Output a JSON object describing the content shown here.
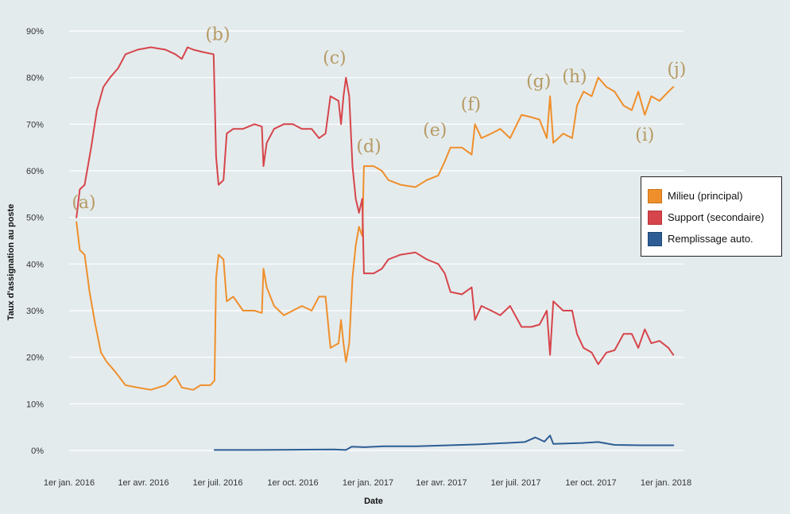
{
  "chart_data": {
    "type": "line",
    "xlabel": "Date",
    "ylabel": "Taux d'assignation au poste",
    "ylim": [
      0,
      90
    ],
    "y_ticks": [
      0,
      10,
      20,
      30,
      40,
      50,
      60,
      70,
      80,
      90
    ],
    "y_tick_labels": [
      "0%",
      "10%",
      "20%",
      "30%",
      "40%",
      "50%",
      "60%",
      "70%",
      "80%",
      "90%"
    ],
    "x_range": [
      "2016-01-01",
      "2018-01-01"
    ],
    "x_tick_dates": [
      "2016-01-01",
      "2016-04-01",
      "2016-07-01",
      "2016-10-01",
      "2017-01-01",
      "2017-04-01",
      "2017-07-01",
      "2017-10-01",
      "2018-01-01"
    ],
    "x_tick_labels": [
      "1er jan. 2016",
      "1er avr. 2016",
      "1er juil. 2016",
      "1er oct. 2016",
      "1er jan. 2017",
      "1er avr. 2017",
      "1er juil. 2017",
      "1er oct. 2017",
      "1er jan. 2018"
    ],
    "grid": "horizontal",
    "legend_position": "right",
    "series": [
      {
        "name": "Milieu (principal)",
        "color": "#ef8f2b",
        "points": [
          [
            "2016-01-10",
            49
          ],
          [
            "2016-01-14",
            43
          ],
          [
            "2016-01-20",
            42
          ],
          [
            "2016-01-26",
            34
          ],
          [
            "2016-02-02",
            27
          ],
          [
            "2016-02-09",
            21
          ],
          [
            "2016-02-16",
            19
          ],
          [
            "2016-02-26",
            17
          ],
          [
            "2016-03-10",
            14
          ],
          [
            "2016-03-25",
            13.5
          ],
          [
            "2016-04-10",
            13
          ],
          [
            "2016-04-28",
            14
          ],
          [
            "2016-05-10",
            16
          ],
          [
            "2016-05-18",
            13.5
          ],
          [
            "2016-06-01",
            13
          ],
          [
            "2016-06-10",
            14
          ],
          [
            "2016-06-22",
            14
          ],
          [
            "2016-06-27",
            15
          ],
          [
            "2016-06-29",
            37
          ],
          [
            "2016-07-02",
            42
          ],
          [
            "2016-07-08",
            41
          ],
          [
            "2016-07-12",
            32
          ],
          [
            "2016-07-20",
            33
          ],
          [
            "2016-08-01",
            30
          ],
          [
            "2016-08-15",
            30
          ],
          [
            "2016-08-24",
            29.5
          ],
          [
            "2016-08-26",
            39
          ],
          [
            "2016-08-30",
            35
          ],
          [
            "2016-09-08",
            31
          ],
          [
            "2016-09-20",
            29
          ],
          [
            "2016-10-01",
            30
          ],
          [
            "2016-10-12",
            31
          ],
          [
            "2016-10-24",
            30
          ],
          [
            "2016-11-02",
            33
          ],
          [
            "2016-11-10",
            33
          ],
          [
            "2016-11-16",
            22
          ],
          [
            "2016-11-26",
            23
          ],
          [
            "2016-11-29",
            28
          ],
          [
            "2016-12-02",
            23
          ],
          [
            "2016-12-05",
            19
          ],
          [
            "2016-12-09",
            23
          ],
          [
            "2016-12-13",
            37
          ],
          [
            "2016-12-17",
            44
          ],
          [
            "2016-12-21",
            48
          ],
          [
            "2016-12-25",
            46
          ],
          [
            "2016-12-27",
            61
          ],
          [
            "2017-01-08",
            61
          ],
          [
            "2017-01-18",
            60
          ],
          [
            "2017-01-26",
            58
          ],
          [
            "2017-02-10",
            57
          ],
          [
            "2017-02-28",
            56.5
          ],
          [
            "2017-03-14",
            58
          ],
          [
            "2017-03-28",
            59
          ],
          [
            "2017-04-05",
            62
          ],
          [
            "2017-04-12",
            65
          ],
          [
            "2017-04-26",
            65
          ],
          [
            "2017-05-08",
            63.5
          ],
          [
            "2017-05-12",
            70
          ],
          [
            "2017-05-20",
            67
          ],
          [
            "2017-06-01",
            68
          ],
          [
            "2017-06-12",
            69
          ],
          [
            "2017-06-24",
            67
          ],
          [
            "2017-07-08",
            72
          ],
          [
            "2017-07-20",
            71.5
          ],
          [
            "2017-07-30",
            71
          ],
          [
            "2017-08-08",
            67
          ],
          [
            "2017-08-12",
            76
          ],
          [
            "2017-08-16",
            66
          ],
          [
            "2017-08-28",
            68
          ],
          [
            "2017-09-08",
            67
          ],
          [
            "2017-09-14",
            74
          ],
          [
            "2017-09-22",
            77
          ],
          [
            "2017-10-02",
            76
          ],
          [
            "2017-10-10",
            80
          ],
          [
            "2017-10-20",
            78
          ],
          [
            "2017-10-30",
            77
          ],
          [
            "2017-11-10",
            74
          ],
          [
            "2017-11-20",
            73
          ],
          [
            "2017-11-28",
            77
          ],
          [
            "2017-12-06",
            72
          ],
          [
            "2017-12-14",
            76
          ],
          [
            "2017-12-24",
            75
          ],
          [
            "2018-01-04",
            77
          ],
          [
            "2018-01-10",
            78
          ]
        ]
      },
      {
        "name": "Support (secondaire)",
        "color": "#d6454b",
        "points": [
          [
            "2016-01-10",
            50
          ],
          [
            "2016-01-14",
            56
          ],
          [
            "2016-01-20",
            57
          ],
          [
            "2016-01-28",
            65
          ],
          [
            "2016-02-04",
            73
          ],
          [
            "2016-02-12",
            78
          ],
          [
            "2016-02-20",
            80
          ],
          [
            "2016-03-01",
            82
          ],
          [
            "2016-03-10",
            85
          ],
          [
            "2016-03-25",
            86
          ],
          [
            "2016-04-10",
            86.5
          ],
          [
            "2016-04-28",
            86
          ],
          [
            "2016-05-10",
            85
          ],
          [
            "2016-05-18",
            84
          ],
          [
            "2016-05-25",
            86.5
          ],
          [
            "2016-06-01",
            86
          ],
          [
            "2016-06-12",
            85.5
          ],
          [
            "2016-06-26",
            85
          ],
          [
            "2016-06-29",
            63
          ],
          [
            "2016-07-02",
            57
          ],
          [
            "2016-07-08",
            58
          ],
          [
            "2016-07-12",
            68
          ],
          [
            "2016-07-20",
            69
          ],
          [
            "2016-08-01",
            69
          ],
          [
            "2016-08-15",
            70
          ],
          [
            "2016-08-24",
            69.5
          ],
          [
            "2016-08-26",
            61
          ],
          [
            "2016-08-30",
            66
          ],
          [
            "2016-09-08",
            69
          ],
          [
            "2016-09-20",
            70
          ],
          [
            "2016-10-01",
            70
          ],
          [
            "2016-10-12",
            69
          ],
          [
            "2016-10-24",
            69
          ],
          [
            "2016-11-02",
            67
          ],
          [
            "2016-11-10",
            68
          ],
          [
            "2016-11-16",
            76
          ],
          [
            "2016-11-26",
            75
          ],
          [
            "2016-11-29",
            70
          ],
          [
            "2016-12-02",
            76
          ],
          [
            "2016-12-05",
            80
          ],
          [
            "2016-12-09",
            76
          ],
          [
            "2016-12-13",
            61
          ],
          [
            "2016-12-17",
            54
          ],
          [
            "2016-12-21",
            51
          ],
          [
            "2016-12-25",
            54
          ],
          [
            "2016-12-27",
            38
          ],
          [
            "2017-01-08",
            38
          ],
          [
            "2017-01-18",
            39
          ],
          [
            "2017-01-26",
            41
          ],
          [
            "2017-02-10",
            42
          ],
          [
            "2017-02-28",
            42.5
          ],
          [
            "2017-03-14",
            41
          ],
          [
            "2017-03-28",
            40
          ],
          [
            "2017-04-05",
            38
          ],
          [
            "2017-04-12",
            34
          ],
          [
            "2017-04-26",
            33.5
          ],
          [
            "2017-05-08",
            35
          ],
          [
            "2017-05-12",
            28
          ],
          [
            "2017-05-20",
            31
          ],
          [
            "2017-06-01",
            30
          ],
          [
            "2017-06-12",
            29
          ],
          [
            "2017-06-24",
            31
          ],
          [
            "2017-07-08",
            26.5
          ],
          [
            "2017-07-20",
            26.5
          ],
          [
            "2017-07-30",
            27
          ],
          [
            "2017-08-08",
            30
          ],
          [
            "2017-08-12",
            20.5
          ],
          [
            "2017-08-16",
            32
          ],
          [
            "2017-08-28",
            30
          ],
          [
            "2017-09-08",
            30
          ],
          [
            "2017-09-14",
            25
          ],
          [
            "2017-09-22",
            22
          ],
          [
            "2017-10-02",
            21
          ],
          [
            "2017-10-10",
            18.5
          ],
          [
            "2017-10-20",
            21
          ],
          [
            "2017-10-30",
            21.5
          ],
          [
            "2017-11-10",
            25
          ],
          [
            "2017-11-20",
            25
          ],
          [
            "2017-11-28",
            22
          ],
          [
            "2017-12-06",
            26
          ],
          [
            "2017-12-14",
            23
          ],
          [
            "2017-12-24",
            23.5
          ],
          [
            "2018-01-04",
            22
          ],
          [
            "2018-01-10",
            20.5
          ]
        ]
      },
      {
        "name": "Remplissage auto.",
        "color": "#2d5d94",
        "points": [
          [
            "2016-06-27",
            0.1
          ],
          [
            "2016-08-15",
            0.1
          ],
          [
            "2016-10-01",
            0.15
          ],
          [
            "2016-11-20",
            0.2
          ],
          [
            "2016-12-05",
            0.1
          ],
          [
            "2016-12-12",
            0.8
          ],
          [
            "2016-12-28",
            0.7
          ],
          [
            "2017-01-20",
            0.9
          ],
          [
            "2017-03-01",
            0.9
          ],
          [
            "2017-04-10",
            1.1
          ],
          [
            "2017-05-15",
            1.3
          ],
          [
            "2017-06-20",
            1.6
          ],
          [
            "2017-07-12",
            1.8
          ],
          [
            "2017-07-25",
            2.8
          ],
          [
            "2017-08-05",
            1.9
          ],
          [
            "2017-08-12",
            3.2
          ],
          [
            "2017-08-16",
            1.4
          ],
          [
            "2017-09-20",
            1.6
          ],
          [
            "2017-10-10",
            1.8
          ],
          [
            "2017-10-30",
            1.2
          ],
          [
            "2017-12-01",
            1.1
          ],
          [
            "2018-01-10",
            1.1
          ]
        ]
      }
    ],
    "annotations": [
      {
        "label": "(a)",
        "date": "2016-01-19",
        "value": 52
      },
      {
        "label": "(b)",
        "date": "2016-07-01",
        "value": 88
      },
      {
        "label": "(c)",
        "date": "2016-11-21",
        "value": 83
      },
      {
        "label": "(d)",
        "date": "2017-01-02",
        "value": 64
      },
      {
        "label": "(e)",
        "date": "2017-03-24",
        "value": 67.5
      },
      {
        "label": "(f)",
        "date": "2017-05-07",
        "value": 73
      },
      {
        "label": "(g)",
        "date": "2017-07-29",
        "value": 78
      },
      {
        "label": "(h)",
        "date": "2017-09-11",
        "value": 79
      },
      {
        "label": "(i)",
        "date": "2017-12-06",
        "value": 66.5
      },
      {
        "label": "(j)",
        "date": "2018-01-14",
        "value": 80.5
      }
    ]
  }
}
